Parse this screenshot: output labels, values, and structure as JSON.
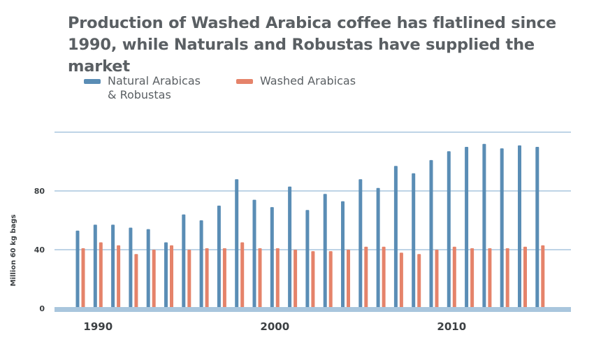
{
  "chart_data": {
    "type": "bar",
    "title": "Production of Washed Arabica coffee has flatlined since 1990, while Naturals and Robustas have supplied the market",
    "xlabel": "",
    "ylabel": "Million 60 kg bags",
    "ylim": [
      0,
      120
    ],
    "yticks": [
      0,
      40,
      80
    ],
    "grid": true,
    "legend_position": "top-left",
    "x": [
      1989,
      1990,
      1991,
      1992,
      1993,
      1994,
      1995,
      1996,
      1997,
      1998,
      1999,
      2000,
      2001,
      2002,
      2003,
      2004,
      2005,
      2006,
      2007,
      2008,
      2009,
      2010,
      2011,
      2012,
      2013,
      2014,
      2015
    ],
    "xtick_labels": [
      "1990",
      "2000",
      "2010"
    ],
    "xtick_values": [
      1990,
      2000,
      2010
    ],
    "series": [
      {
        "name": "Natural Arabicas & Robustas",
        "color": "#5a8db5",
        "values": [
          53,
          57,
          57,
          55,
          54,
          45,
          64,
          60,
          70,
          88,
          74,
          69,
          83,
          67,
          78,
          73,
          88,
          82,
          97,
          92,
          101,
          107,
          110,
          112,
          109,
          111,
          110
        ]
      },
      {
        "name": "Washed Arabicas",
        "color": "#e5836a",
        "values": [
          41,
          45,
          43,
          37,
          40,
          43,
          40,
          41,
          41,
          45,
          41,
          41,
          40,
          39,
          39,
          40,
          42,
          42,
          38,
          37,
          40,
          42,
          41,
          41,
          41,
          42,
          43
        ]
      }
    ]
  },
  "legend": {
    "series1_label_line1": "Natural Arabicas",
    "series1_label_line2": "& Robustas",
    "series2_label": "Washed Arabicas"
  },
  "colors": {
    "grid": "#a9c6dd",
    "baseline": "#a9c6dd",
    "title": "#5a5f63"
  }
}
